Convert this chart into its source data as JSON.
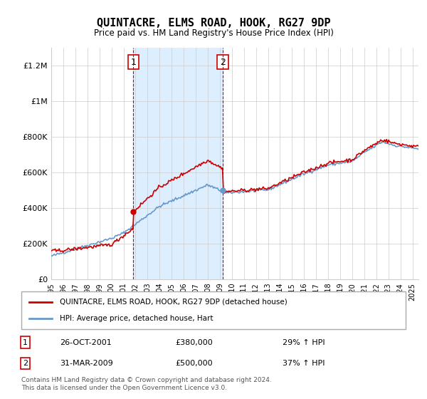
{
  "title": "QUINTACRE, ELMS ROAD, HOOK, RG27 9DP",
  "subtitle": "Price paid vs. HM Land Registry's House Price Index (HPI)",
  "legend_line1": "QUINTACRE, ELMS ROAD, HOOK, RG27 9DP (detached house)",
  "legend_line2": "HPI: Average price, detached house, Hart",
  "annotation1_label": "1",
  "annotation1_date": "26-OCT-2001",
  "annotation1_price": "£380,000",
  "annotation1_hpi": "29% ↑ HPI",
  "annotation2_label": "2",
  "annotation2_date": "31-MAR-2009",
  "annotation2_price": "£500,000",
  "annotation2_hpi": "37% ↑ HPI",
  "footnote": "Contains HM Land Registry data © Crown copyright and database right 2024.\nThis data is licensed under the Open Government Licence v3.0.",
  "red_color": "#cc0000",
  "blue_color": "#6699cc",
  "shade_color": "#ddeeff",
  "vline_color": "#cc0000",
  "background_color": "#ffffff",
  "ylim": [
    0,
    1300000
  ],
  "xlim_start": 1995.0,
  "xlim_end": 2025.5,
  "purchase1_x": 2001.82,
  "purchase1_y": 380000,
  "purchase2_x": 2009.25,
  "purchase2_y": 500000
}
